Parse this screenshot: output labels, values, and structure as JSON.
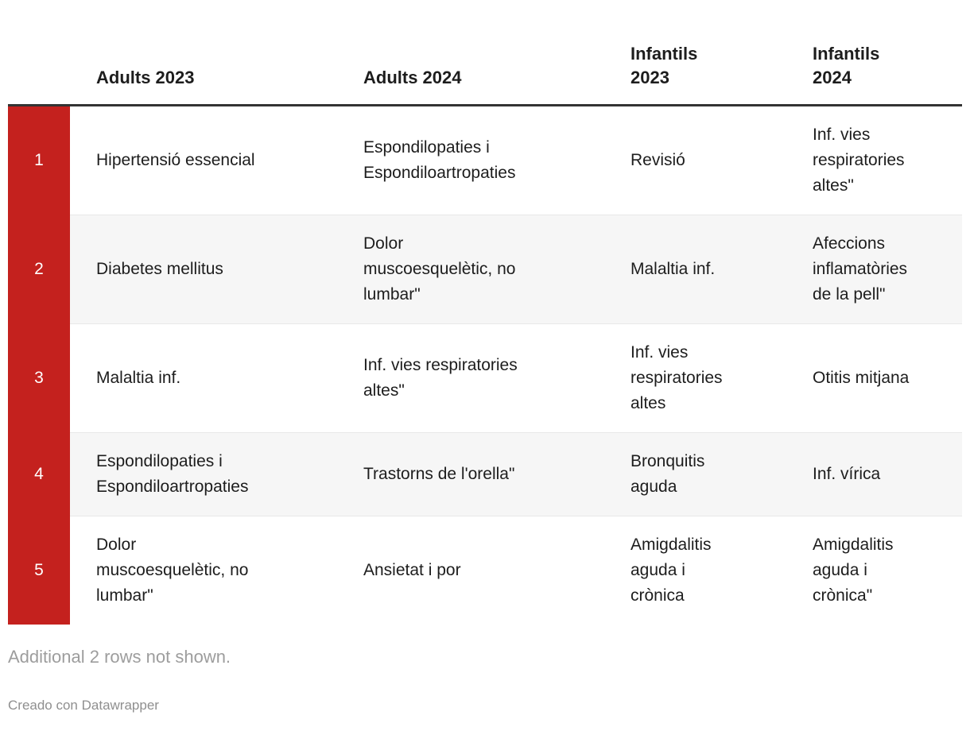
{
  "colors": {
    "rank_background": "#c4211e",
    "rank_text": "#ffffff",
    "header_rule": "#333333",
    "row_alt_background": "#f6f6f6",
    "row_divider": "#e8e8e8",
    "body_text": "#1d1d1d",
    "note_text": "#9d9d9d",
    "attribution_text": "#8f8f8f"
  },
  "chart_data": {
    "type": "table",
    "columns": [
      "",
      "Adults 2023",
      "Adults 2024",
      "Infantils 2023",
      "Infantils 2024"
    ],
    "rows": [
      [
        "1",
        "Hipertensió essencial",
        "Espondilopaties i Espondiloartropaties",
        "Revisió",
        "Inf. vies respiratories altes\""
      ],
      [
        "2",
        "Diabetes mellitus",
        "Dolor muscoesquelètic, no lumbar\"",
        "Malaltia inf.",
        "Afeccions inflamatòries de la pell\""
      ],
      [
        "3",
        "Malaltia inf.",
        "Inf. vies respiratories altes\"",
        "Inf. vies respiratories altes",
        "Otitis mitjana"
      ],
      [
        "4",
        "Espondilopaties i Espondiloartropaties",
        "Trastorns de l'orella\"",
        "Bronquitis aguda",
        "Inf. vírica"
      ],
      [
        "5",
        "Dolor muscoesquelètic, no lumbar\"",
        "Ansietat i por",
        "Amigdalitis aguda i crònica",
        "Amigdalitis aguda i crònica\""
      ]
    ],
    "note": "Additional 2 rows not shown.",
    "attribution": "Creado con Datawrapper",
    "layout_hints": {
      "striped_rows": "even",
      "rank_column_highlight": true
    }
  }
}
